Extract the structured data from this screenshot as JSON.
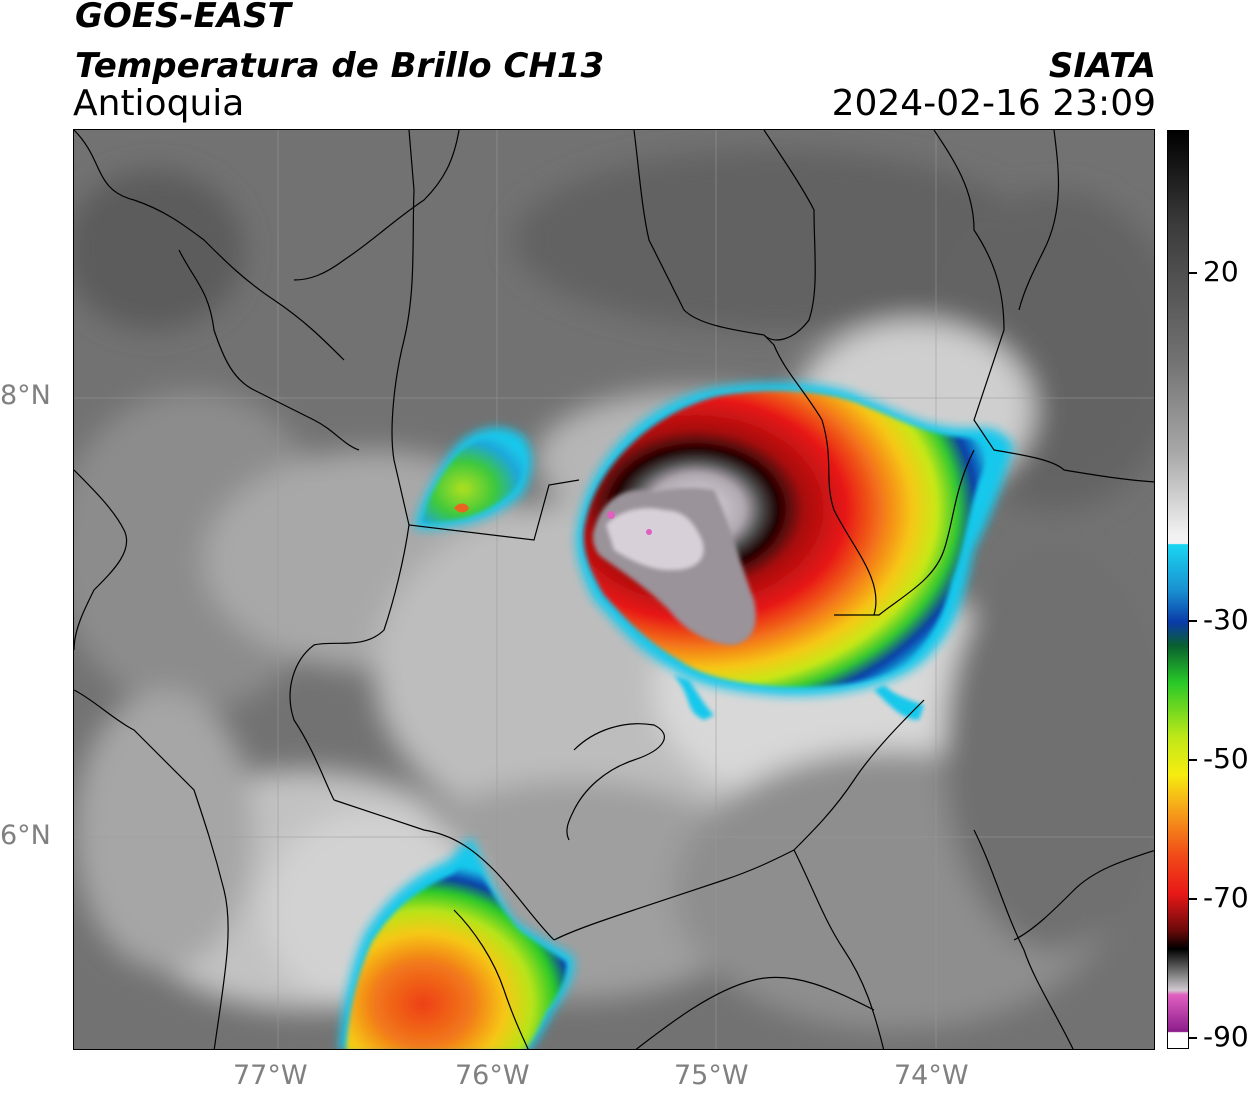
{
  "header": {
    "satellite": "GOES-EAST",
    "product": "Temperatura de Brillo CH13",
    "region": "Antioquia",
    "agency": "SIATA",
    "datetime": "2024-02-16 23:09"
  },
  "axes": {
    "lon_ticks": [
      "77°W",
      "76°W",
      "75°W",
      "74°W"
    ],
    "lat_ticks": [
      "8°N",
      "6°N"
    ]
  },
  "colorbar": {
    "ticks": [
      "20",
      "-30",
      "-50",
      "-70",
      "-90"
    ],
    "colors": {
      "warm_gray": "#6b6b6b",
      "cloud_white": "#f2f2f2",
      "cyan": "#19c8ec",
      "blue": "#0a3aa8",
      "green": "#28c828",
      "yellow": "#f6ec10",
      "orange": "#f6901a",
      "red": "#e81818",
      "dark_red": "#6a0a0a",
      "pink": "#e060c0",
      "purple": "#8c1c8c"
    }
  },
  "map": {
    "features": [
      "country-borders",
      "department-borders",
      "coastline",
      "gridlines"
    ]
  }
}
